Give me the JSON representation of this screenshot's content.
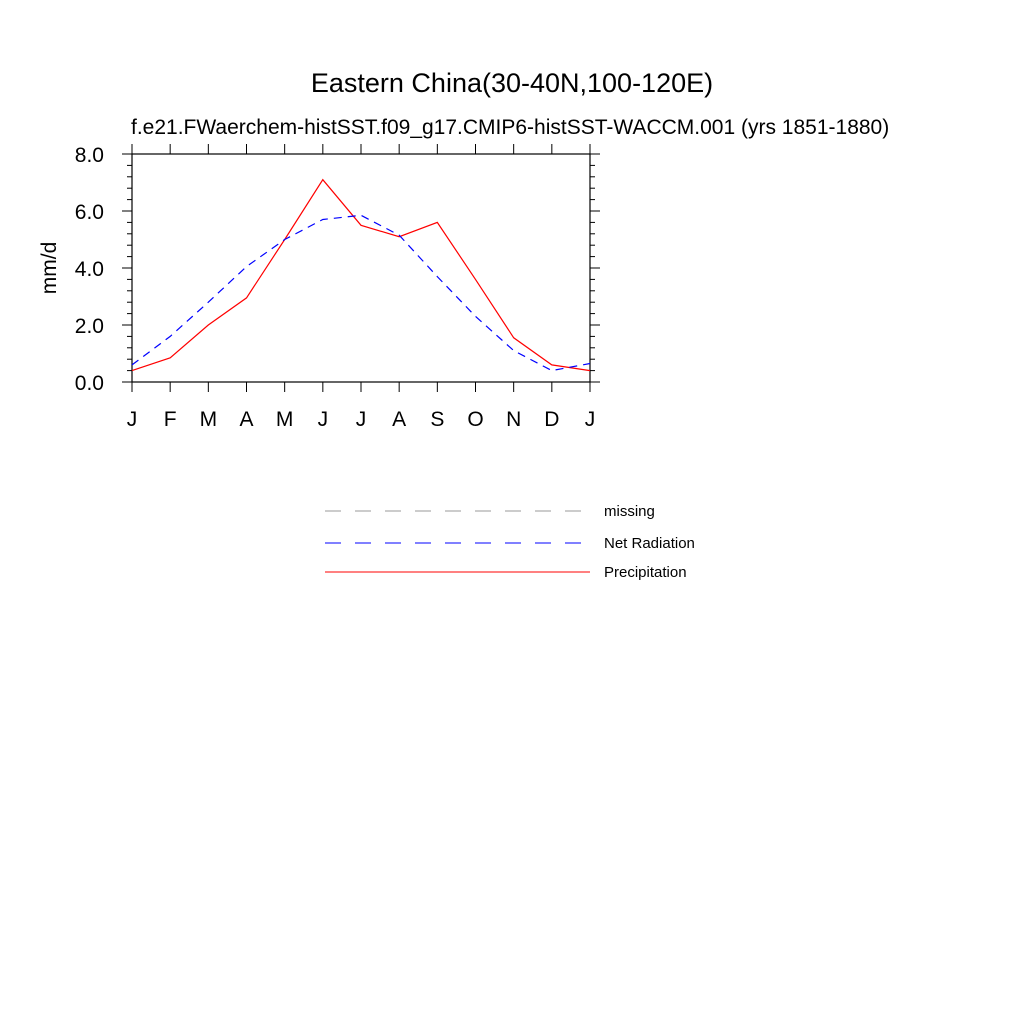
{
  "chart_data": {
    "type": "line",
    "title": "Eastern China(30-40N,100-120E)",
    "subtitle": "f.e21.FWaerchem-histSST.f09_g17.CMIP6-histSST-WACCM.001 (yrs 1851-1880)",
    "ylabel": "mm/d",
    "xlabel": "",
    "categories": [
      "J",
      "F",
      "M",
      "A",
      "M",
      "J",
      "J",
      "A",
      "S",
      "O",
      "N",
      "D",
      "J"
    ],
    "ylim": [
      0,
      8
    ],
    "yticks": [
      "0.0",
      "2.0",
      "4.0",
      "6.0",
      "8.0"
    ],
    "yticks_values": [
      0,
      2,
      4,
      6,
      8
    ],
    "grid": false,
    "legend_position": "bottom-center",
    "series": [
      {
        "name": "Precipitation",
        "color": "#ff0000",
        "dash": "solid",
        "values": [
          0.4,
          0.85,
          2.0,
          2.95,
          5.0,
          7.1,
          5.5,
          5.1,
          5.6,
          3.6,
          1.55,
          0.6,
          0.4
        ]
      },
      {
        "name": "Net Radiation",
        "color": "#0000ff",
        "dash": "dashed",
        "values": [
          0.6,
          1.6,
          2.8,
          4.05,
          5.0,
          5.7,
          5.85,
          5.15,
          3.7,
          2.3,
          1.1,
          0.4,
          0.65
        ]
      }
    ],
    "legend": [
      {
        "label": "missing",
        "color": "#999999",
        "dash": "dashed"
      },
      {
        "label": "Net Radiation",
        "color": "#0000ff",
        "dash": "dashed"
      },
      {
        "label": "Precipitation",
        "color": "#ff0000",
        "dash": "solid"
      }
    ]
  }
}
